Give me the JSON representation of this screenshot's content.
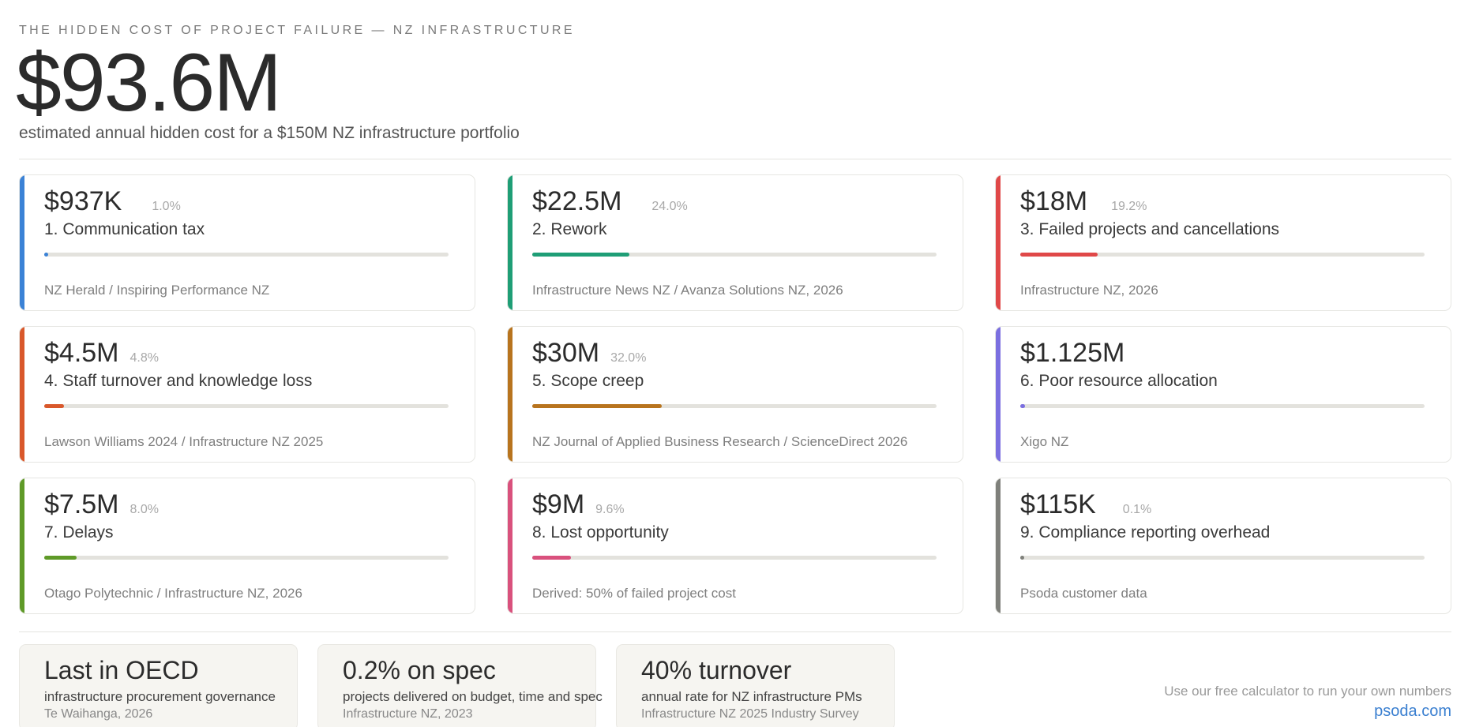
{
  "header": {
    "eyebrow": "THE HIDDEN COST OF PROJECT FAILURE — NZ INFRASTRUCTURE",
    "total": "$93.6M",
    "subtitle": "estimated annual hidden cost for a $150M NZ infrastructure portfolio"
  },
  "cost_items": [
    {
      "value": "$937K",
      "percent": "1.0%",
      "title": "1. Communication tax",
      "source": "NZ Herald / Inspiring Performance NZ",
      "color": "#3b82d6",
      "share": 0.01
    },
    {
      "value": "$22.5M",
      "percent": "24.0%",
      "title": "2. Rework",
      "source": "Infrastructure News NZ / Avanza Solutions NZ, 2026",
      "color": "#1f9e76",
      "share": 0.24
    },
    {
      "value": "$18M",
      "percent": "19.2%",
      "title": "3. Failed projects and cancellations",
      "source": "Infrastructure NZ, 2026",
      "color": "#e04848",
      "share": 0.192
    },
    {
      "value": "$4.5M",
      "percent": "4.8%",
      "title": "4. Staff turnover and knowledge loss",
      "source": "Lawson Williams 2024 / Infrastructure NZ 2025",
      "color": "#d9582b",
      "share": 0.048
    },
    {
      "value": "$30M",
      "percent": "32.0%",
      "title": "5. Scope creep",
      "source": "NZ Journal of Applied Business Research / ScienceDirect 2026",
      "color": "#b8741e",
      "share": 0.32
    },
    {
      "value": "$1.125M",
      "percent": "",
      "title": "6. Poor resource allocation",
      "source": "Xigo NZ",
      "color": "#7b6fe0",
      "share": 0.012
    },
    {
      "value": "$7.5M",
      "percent": "8.0%",
      "title": "7. Delays",
      "source": "Otago Polytechnic / Infrastructure NZ, 2026",
      "color": "#5f9a28",
      "share": 0.08
    },
    {
      "value": "$9M",
      "percent": "9.6%",
      "title": "8. Lost opportunity",
      "source": "Derived: 50% of failed project cost",
      "color": "#d9517d",
      "share": 0.096
    },
    {
      "value": "$115K",
      "percent": "0.1%",
      "title": "9. Compliance reporting overhead",
      "source": "Psoda customer data",
      "color": "#7f807b",
      "share": 0.001
    }
  ],
  "stats": [
    {
      "headline": "Last in OECD",
      "description": "infrastructure procurement governance",
      "source": "Te Waihanga, 2026"
    },
    {
      "headline": "0.2% on spec",
      "description": "projects delivered on budget, time and spec",
      "source": "Infrastructure NZ, 2023"
    },
    {
      "headline": "40% turnover",
      "description": "annual rate for NZ infrastructure PMs",
      "source": "Infrastructure NZ 2025 Industry Survey"
    }
  ],
  "cta": {
    "text": "Use our free calculator to run your own numbers",
    "link": "psoda.com"
  }
}
